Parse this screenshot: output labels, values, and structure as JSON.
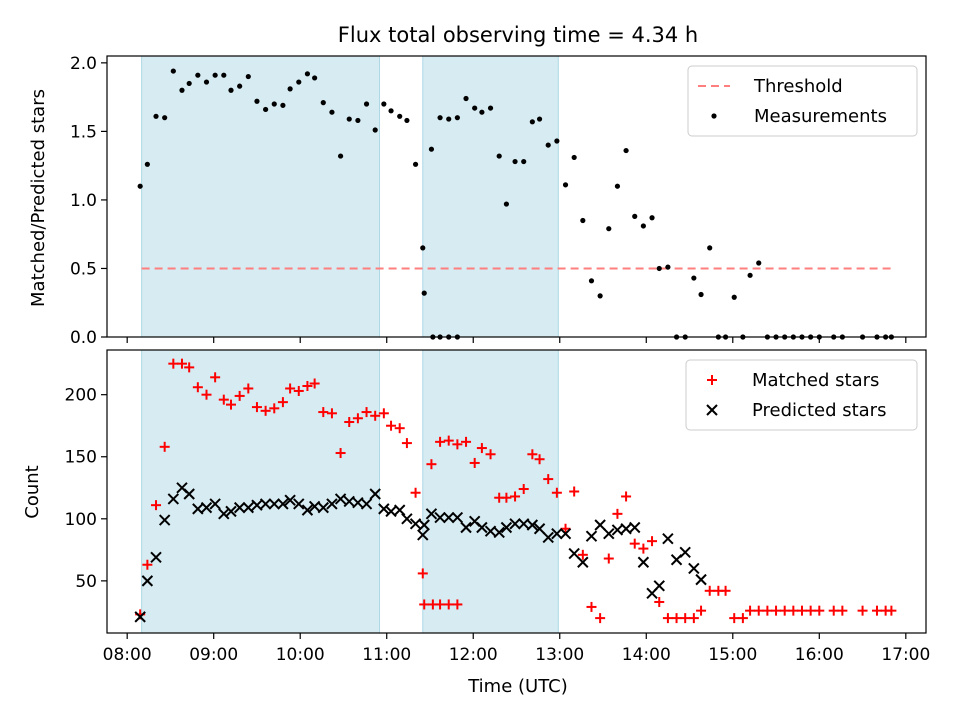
{
  "chart_data": [
    {
      "type": "scatter",
      "title": "Flux total observing time = 4.34 h",
      "xlabel": "",
      "ylabel": "Matched/Predicted stars",
      "ylim": [
        0,
        2.05
      ],
      "yticks": [
        0.0,
        0.5,
        1.0,
        1.5,
        2.0
      ],
      "ytick_labels": [
        "0.0",
        "0.5",
        "1.0",
        "1.5",
        "2.0"
      ],
      "grid": false,
      "legend": "top-right",
      "shaded_intervals": [
        [
          "08:10",
          "10:55"
        ],
        [
          "11:25",
          "12:59"
        ]
      ],
      "threshold": {
        "name": "Threshold",
        "value": 0.5,
        "x_range": [
          "08:10",
          "16:50"
        ],
        "color": "#ff7f7f"
      },
      "series": [
        {
          "name": "Measurements",
          "marker": "dot",
          "color": "#000000",
          "points": [
            [
              "08:09",
              1.1
            ],
            [
              "08:14",
              1.26
            ],
            [
              "08:20",
              1.61
            ],
            [
              "08:26",
              1.6
            ],
            [
              "08:32",
              1.94
            ],
            [
              "08:38",
              1.8
            ],
            [
              "08:43",
              1.85
            ],
            [
              "08:49",
              1.91
            ],
            [
              "08:55",
              1.86
            ],
            [
              "09:01",
              1.91
            ],
            [
              "09:07",
              1.91
            ],
            [
              "09:12",
              1.8
            ],
            [
              "09:18",
              1.83
            ],
            [
              "09:24",
              1.9
            ],
            [
              "09:30",
              1.72
            ],
            [
              "09:36",
              1.66
            ],
            [
              "09:42",
              1.7
            ],
            [
              "09:48",
              1.69
            ],
            [
              "09:53",
              1.81
            ],
            [
              "09:59",
              1.86
            ],
            [
              "10:05",
              1.92
            ],
            [
              "10:10",
              1.89
            ],
            [
              "10:16",
              1.71
            ],
            [
              "10:22",
              1.64
            ],
            [
              "10:28",
              1.32
            ],
            [
              "10:34",
              1.59
            ],
            [
              "10:40",
              1.58
            ],
            [
              "10:46",
              1.7
            ],
            [
              "10:52",
              1.51
            ],
            [
              "10:58",
              1.7
            ],
            [
              "11:03",
              1.65
            ],
            [
              "11:09",
              1.61
            ],
            [
              "11:14",
              1.58
            ],
            [
              "11:20",
              1.26
            ],
            [
              "11:26",
              0.32
            ],
            [
              "11:32",
              0.0
            ],
            [
              "11:37",
              0.0
            ],
            [
              "11:43",
              0.0
            ],
            [
              "11:49",
              0.0
            ],
            [
              "11:25",
              0.65
            ],
            [
              "11:31",
              1.37
            ],
            [
              "11:37",
              1.6
            ],
            [
              "11:43",
              1.59
            ],
            [
              "11:49",
              1.6
            ],
            [
              "11:55",
              1.74
            ],
            [
              "12:01",
              1.67
            ],
            [
              "12:06",
              1.64
            ],
            [
              "12:12",
              1.67
            ],
            [
              "12:18",
              1.32
            ],
            [
              "12:23",
              0.97
            ],
            [
              "12:29",
              1.28
            ],
            [
              "12:35",
              1.28
            ],
            [
              "12:41",
              1.57
            ],
            [
              "12:46",
              1.59
            ],
            [
              "12:52",
              1.4
            ],
            [
              "12:58",
              1.43
            ],
            [
              "13:04",
              1.11
            ],
            [
              "13:10",
              1.31
            ],
            [
              "13:16",
              0.85
            ],
            [
              "13:22",
              0.41
            ],
            [
              "13:28",
              0.3
            ],
            [
              "13:34",
              0.79
            ],
            [
              "13:40",
              1.1
            ],
            [
              "13:46",
              1.36
            ],
            [
              "13:52",
              0.88
            ],
            [
              "13:58",
              0.81
            ],
            [
              "14:04",
              0.87
            ],
            [
              "14:09",
              0.5
            ],
            [
              "14:15",
              0.51
            ],
            [
              "14:21",
              0.0
            ],
            [
              "14:27",
              0.0
            ],
            [
              "14:33",
              0.43
            ],
            [
              "14:38",
              0.31
            ],
            [
              "14:44",
              0.65
            ],
            [
              "14:50",
              0.0
            ],
            [
              "14:55",
              0.0
            ],
            [
              "15:01",
              0.29
            ],
            [
              "15:07",
              0.0
            ],
            [
              "15:12",
              0.45
            ],
            [
              "15:18",
              0.54
            ],
            [
              "15:24",
              0.0
            ],
            [
              "15:30",
              0.0
            ],
            [
              "15:36",
              0.0
            ],
            [
              "15:42",
              0.0
            ],
            [
              "15:48",
              0.0
            ],
            [
              "15:54",
              0.0
            ],
            [
              "16:00",
              0.0
            ],
            [
              "16:10",
              0.0
            ],
            [
              "16:16",
              0.0
            ],
            [
              "16:30",
              0.0
            ],
            [
              "16:40",
              0.0
            ],
            [
              "16:46",
              0.0
            ],
            [
              "16:50",
              0.0
            ]
          ]
        }
      ]
    },
    {
      "type": "scatter",
      "title": "",
      "xlabel": "Time (UTC)",
      "ylabel": "Count",
      "ylim": [
        8,
        236
      ],
      "yticks": [
        50,
        100,
        150,
        200
      ],
      "ytick_labels": [
        "50",
        "100",
        "150",
        "200"
      ],
      "xlim": [
        "07:46",
        "17:14"
      ],
      "xticks": [
        "08:00",
        "09:00",
        "10:00",
        "11:00",
        "12:00",
        "13:00",
        "14:00",
        "15:00",
        "16:00",
        "17:00"
      ],
      "grid": false,
      "legend": "top-right",
      "shaded_intervals": [
        [
          "08:10",
          "10:55"
        ],
        [
          "11:25",
          "12:59"
        ]
      ],
      "series": [
        {
          "name": "Matched stars",
          "marker": "plus",
          "color": "#ff0000",
          "points": [
            [
              "08:09",
              23
            ],
            [
              "08:14",
              63
            ],
            [
              "08:20",
              111
            ],
            [
              "08:26",
              158
            ],
            [
              "08:32",
              225
            ],
            [
              "08:38",
              225
            ],
            [
              "08:43",
              222
            ],
            [
              "08:49",
              206
            ],
            [
              "08:55",
              200
            ],
            [
              "09:01",
              214
            ],
            [
              "09:07",
              196
            ],
            [
              "09:12",
              192
            ],
            [
              "09:18",
              199
            ],
            [
              "09:24",
              205
            ],
            [
              "09:30",
              190
            ],
            [
              "09:36",
              187
            ],
            [
              "09:42",
              189
            ],
            [
              "09:48",
              194
            ],
            [
              "09:53",
              205
            ],
            [
              "09:59",
              203
            ],
            [
              "10:05",
              207
            ],
            [
              "10:10",
              209
            ],
            [
              "10:16",
              186
            ],
            [
              "10:22",
              185
            ],
            [
              "10:28",
              153
            ],
            [
              "10:34",
              178
            ],
            [
              "10:40",
              181
            ],
            [
              "10:46",
              186
            ],
            [
              "10:52",
              183
            ],
            [
              "10:58",
              185
            ],
            [
              "11:03",
              175
            ],
            [
              "11:09",
              173
            ],
            [
              "11:14",
              161
            ],
            [
              "11:20",
              121
            ],
            [
              "11:26",
              31
            ],
            [
              "11:32",
              31
            ],
            [
              "11:37",
              31
            ],
            [
              "11:43",
              31
            ],
            [
              "11:49",
              31
            ],
            [
              "11:25",
              56
            ],
            [
              "11:31",
              144
            ],
            [
              "11:37",
              162
            ],
            [
              "11:43",
              163
            ],
            [
              "11:49",
              160
            ],
            [
              "11:55",
              162
            ],
            [
              "12:01",
              145
            ],
            [
              "12:06",
              157
            ],
            [
              "12:12",
              152
            ],
            [
              "12:18",
              117
            ],
            [
              "12:23",
              117
            ],
            [
              "12:29",
              118
            ],
            [
              "12:35",
              124
            ],
            [
              "12:41",
              152
            ],
            [
              "12:46",
              148
            ],
            [
              "12:52",
              132
            ],
            [
              "12:58",
              121
            ],
            [
              "13:04",
              92
            ],
            [
              "13:10",
              122
            ],
            [
              "13:16",
              71
            ],
            [
              "13:22",
              29
            ],
            [
              "13:28",
              20
            ],
            [
              "13:34",
              68
            ],
            [
              "13:40",
              104
            ],
            [
              "13:46",
              118
            ],
            [
              "13:52",
              80
            ],
            [
              "13:58",
              76
            ],
            [
              "14:04",
              82
            ],
            [
              "14:09",
              33
            ],
            [
              "14:15",
              20
            ],
            [
              "14:21",
              20
            ],
            [
              "14:27",
              20
            ],
            [
              "14:33",
              20
            ],
            [
              "14:38",
              26
            ],
            [
              "14:44",
              42
            ],
            [
              "14:50",
              42
            ],
            [
              "14:55",
              42
            ],
            [
              "15:01",
              20
            ],
            [
              "15:07",
              20
            ],
            [
              "15:12",
              26
            ],
            [
              "15:18",
              26
            ],
            [
              "15:24",
              26
            ],
            [
              "15:30",
              26
            ],
            [
              "15:36",
              26
            ],
            [
              "15:42",
              26
            ],
            [
              "15:48",
              26
            ],
            [
              "15:54",
              26
            ],
            [
              "16:00",
              26
            ],
            [
              "16:10",
              26
            ],
            [
              "16:16",
              26
            ],
            [
              "16:30",
              26
            ],
            [
              "16:40",
              26
            ],
            [
              "16:46",
              26
            ],
            [
              "16:50",
              26
            ]
          ]
        },
        {
          "name": "Predicted stars",
          "marker": "x",
          "color": "#000000",
          "points": [
            [
              "08:09",
              21
            ],
            [
              "08:14",
              50
            ],
            [
              "08:20",
              69
            ],
            [
              "08:26",
              99
            ],
            [
              "08:32",
              116
            ],
            [
              "08:38",
              125
            ],
            [
              "08:43",
              120
            ],
            [
              "08:49",
              108
            ],
            [
              "08:55",
              109
            ],
            [
              "09:01",
              112
            ],
            [
              "09:07",
              104
            ],
            [
              "09:12",
              106
            ],
            [
              "09:18",
              109
            ],
            [
              "09:24",
              109
            ],
            [
              "09:30",
              111
            ],
            [
              "09:36",
              112
            ],
            [
              "09:42",
              112
            ],
            [
              "09:48",
              112
            ],
            [
              "09:53",
              115
            ],
            [
              "09:59",
              112
            ],
            [
              "10:05",
              107
            ],
            [
              "10:10",
              110
            ],
            [
              "10:16",
              109
            ],
            [
              "10:22",
              112
            ],
            [
              "10:28",
              116
            ],
            [
              "10:34",
              114
            ],
            [
              "10:40",
              113
            ],
            [
              "10:46",
              112
            ],
            [
              "10:52",
              120
            ],
            [
              "10:58",
              108
            ],
            [
              "11:03",
              106
            ],
            [
              "11:09",
              107
            ],
            [
              "11:14",
              100
            ],
            [
              "11:20",
              96
            ],
            [
              "11:26",
              95
            ],
            [
              "11:25",
              87
            ],
            [
              "11:31",
              104
            ],
            [
              "11:37",
              101
            ],
            [
              "11:43",
              101
            ],
            [
              "11:49",
              101
            ],
            [
              "11:55",
              93
            ],
            [
              "12:01",
              98
            ],
            [
              "12:06",
              93
            ],
            [
              "12:12",
              90
            ],
            [
              "12:18",
              89
            ],
            [
              "12:23",
              93
            ],
            [
              "12:29",
              96
            ],
            [
              "12:35",
              96
            ],
            [
              "12:41",
              95
            ],
            [
              "12:46",
              92
            ],
            [
              "12:52",
              85
            ],
            [
              "12:58",
              88
            ],
            [
              "13:04",
              88
            ],
            [
              "13:10",
              72
            ],
            [
              "13:16",
              65
            ],
            [
              "13:22",
              86
            ],
            [
              "13:28",
              95
            ],
            [
              "13:34",
              88
            ],
            [
              "13:40",
              91
            ],
            [
              "13:46",
              92
            ],
            [
              "13:52",
              93
            ],
            [
              "13:58",
              65
            ],
            [
              "14:04",
              40
            ],
            [
              "14:09",
              46
            ],
            [
              "14:15",
              84
            ],
            [
              "14:21",
              67
            ],
            [
              "14:27",
              73
            ],
            [
              "14:33",
              60
            ],
            [
              "14:38",
              51
            ]
          ]
        }
      ]
    }
  ]
}
